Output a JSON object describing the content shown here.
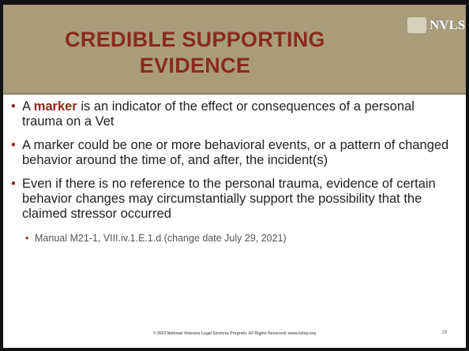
{
  "header": {
    "title": "CREDIBLE SUPPORTING EVIDENCE",
    "logo": "NVLSP"
  },
  "bullets": [
    {
      "parts": [
        "A ",
        "marker",
        " is an indicator of the effect or consequences of a personal trauma on a Vet"
      ]
    },
    {
      "parts": [
        "A marker could be one or more behavioral events, or a pattern of changed behavior around the time of, and after, the incident(s)"
      ]
    },
    {
      "parts": [
        "Even if there is no reference to the personal trauma, evidence of certain behavior changes may circumstantially support the possibility that the claimed stressor occurred"
      ]
    }
  ],
  "sub_bullet": "Manual M21-1, VIII.iv.1.E.1.d (change date July 29, 2021)",
  "footer": {
    "copyright": "© 2023 National Veterans Legal Services Program. All Rights Reserved. www.nvlsp.org",
    "page": "29"
  }
}
